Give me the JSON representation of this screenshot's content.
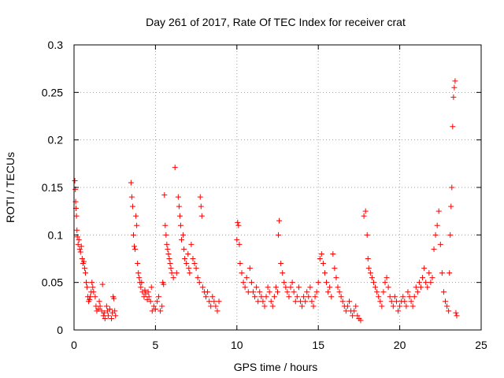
{
  "chart_data": {
    "type": "scatter",
    "title": "Day 261 of 2017, Rate Of TEC Index for receiver crat",
    "xlabel": "GPS time / hours",
    "ylabel": "ROTI / TECUs",
    "xlim": [
      0,
      25
    ],
    "ylim": [
      0,
      0.3
    ],
    "x_ticks": [
      "0",
      "5",
      "10",
      "15",
      "20",
      "25"
    ],
    "y_ticks": [
      "0",
      "0.05",
      "0.1",
      "0.15",
      "0.2",
      "0.25",
      "0.3"
    ],
    "x_tick_values": [
      0,
      5,
      10,
      15,
      20,
      25
    ],
    "y_tick_values": [
      0,
      0.05,
      0.1,
      0.15,
      0.2,
      0.25,
      0.3
    ],
    "grid": true,
    "marker": "plus",
    "series": [
      {
        "color": "#ff0000",
        "points": [
          [
            0.05,
            0.157
          ],
          [
            0.08,
            0.148
          ],
          [
            0.1,
            0.135
          ],
          [
            0.12,
            0.128
          ],
          [
            0.15,
            0.12
          ],
          [
            0.18,
            0.105
          ],
          [
            0.2,
            0.098
          ],
          [
            0.25,
            0.09
          ],
          [
            0.3,
            0.095
          ],
          [
            0.35,
            0.085
          ],
          [
            0.4,
            0.082
          ],
          [
            0.45,
            0.088
          ],
          [
            0.5,
            0.075
          ],
          [
            0.55,
            0.07
          ],
          [
            0.6,
            0.072
          ],
          [
            0.65,
            0.065
          ],
          [
            0.7,
            0.06
          ],
          [
            0.75,
            0.05
          ],
          [
            0.8,
            0.045
          ],
          [
            0.85,
            0.035
          ],
          [
            0.9,
            0.03
          ],
          [
            0.95,
            0.032
          ],
          [
            1.0,
            0.035
          ],
          [
            1.05,
            0.04
          ],
          [
            1.1,
            0.05
          ],
          [
            1.15,
            0.045
          ],
          [
            1.2,
            0.04
          ],
          [
            1.3,
            0.035
          ],
          [
            1.35,
            0.025
          ],
          [
            1.4,
            0.02
          ],
          [
            1.5,
            0.022
          ],
          [
            1.55,
            0.03
          ],
          [
            1.6,
            0.025
          ],
          [
            1.7,
            0.02
          ],
          [
            1.75,
            0.048
          ],
          [
            1.8,
            0.015
          ],
          [
            1.85,
            0.018
          ],
          [
            1.9,
            0.012
          ],
          [
            2.0,
            0.025
          ],
          [
            2.05,
            0.02
          ],
          [
            2.1,
            0.015
          ],
          [
            2.2,
            0.022
          ],
          [
            2.3,
            0.012
          ],
          [
            2.35,
            0.018
          ],
          [
            2.4,
            0.035
          ],
          [
            2.45,
            0.033
          ],
          [
            2.5,
            0.02
          ],
          [
            2.55,
            0.015
          ],
          [
            3.5,
            0.155
          ],
          [
            3.55,
            0.14
          ],
          [
            3.6,
            0.13
          ],
          [
            3.65,
            0.1
          ],
          [
            3.7,
            0.088
          ],
          [
            3.75,
            0.085
          ],
          [
            3.8,
            0.12
          ],
          [
            3.85,
            0.11
          ],
          [
            3.9,
            0.07
          ],
          [
            3.95,
            0.06
          ],
          [
            4.0,
            0.055
          ],
          [
            4.05,
            0.05
          ],
          [
            4.1,
            0.045
          ],
          [
            4.15,
            0.05
          ],
          [
            4.2,
            0.04
          ],
          [
            4.3,
            0.035
          ],
          [
            4.35,
            0.042
          ],
          [
            4.4,
            0.038
          ],
          [
            4.5,
            0.032
          ],
          [
            4.55,
            0.04
          ],
          [
            4.6,
            0.035
          ],
          [
            4.7,
            0.03
          ],
          [
            4.75,
            0.045
          ],
          [
            4.8,
            0.02
          ],
          [
            4.9,
            0.025
          ],
          [
            5.0,
            0.022
          ],
          [
            5.1,
            0.03
          ],
          [
            5.2,
            0.035
          ],
          [
            5.3,
            0.02
          ],
          [
            5.4,
            0.025
          ],
          [
            5.45,
            0.05
          ],
          [
            5.5,
            0.048
          ],
          [
            5.55,
            0.142
          ],
          [
            5.6,
            0.11
          ],
          [
            5.65,
            0.1
          ],
          [
            5.7,
            0.09
          ],
          [
            5.75,
            0.085
          ],
          [
            5.8,
            0.08
          ],
          [
            5.85,
            0.075
          ],
          [
            5.9,
            0.07
          ],
          [
            5.95,
            0.065
          ],
          [
            6.0,
            0.06
          ],
          [
            6.1,
            0.055
          ],
          [
            6.2,
            0.171
          ],
          [
            6.3,
            0.06
          ],
          [
            6.4,
            0.14
          ],
          [
            6.45,
            0.13
          ],
          [
            6.5,
            0.12
          ],
          [
            6.55,
            0.11
          ],
          [
            6.6,
            0.095
          ],
          [
            6.7,
            0.1
          ],
          [
            6.75,
            0.085
          ],
          [
            6.8,
            0.075
          ],
          [
            6.9,
            0.07
          ],
          [
            7.0,
            0.08
          ],
          [
            7.05,
            0.065
          ],
          [
            7.1,
            0.06
          ],
          [
            7.2,
            0.09
          ],
          [
            7.3,
            0.075
          ],
          [
            7.4,
            0.07
          ],
          [
            7.5,
            0.065
          ],
          [
            7.6,
            0.055
          ],
          [
            7.7,
            0.05
          ],
          [
            7.75,
            0.14
          ],
          [
            7.8,
            0.13
          ],
          [
            7.85,
            0.12
          ],
          [
            7.9,
            0.045
          ],
          [
            8.0,
            0.04
          ],
          [
            8.1,
            0.035
          ],
          [
            8.2,
            0.04
          ],
          [
            8.3,
            0.03
          ],
          [
            8.4,
            0.025
          ],
          [
            8.5,
            0.035
          ],
          [
            8.6,
            0.03
          ],
          [
            8.7,
            0.025
          ],
          [
            8.8,
            0.02
          ],
          [
            8.9,
            0.03
          ],
          [
            10.0,
            0.095
          ],
          [
            10.05,
            0.113
          ],
          [
            10.1,
            0.11
          ],
          [
            10.15,
            0.09
          ],
          [
            10.2,
            0.07
          ],
          [
            10.3,
            0.06
          ],
          [
            10.4,
            0.05
          ],
          [
            10.5,
            0.045
          ],
          [
            10.6,
            0.055
          ],
          [
            10.7,
            0.04
          ],
          [
            10.8,
            0.065
          ],
          [
            10.9,
            0.05
          ],
          [
            11.0,
            0.04
          ],
          [
            11.1,
            0.035
          ],
          [
            11.2,
            0.045
          ],
          [
            11.3,
            0.03
          ],
          [
            11.4,
            0.04
          ],
          [
            11.5,
            0.035
          ],
          [
            11.6,
            0.03
          ],
          [
            11.7,
            0.025
          ],
          [
            11.8,
            0.035
          ],
          [
            11.9,
            0.045
          ],
          [
            12.0,
            0.04
          ],
          [
            12.1,
            0.03
          ],
          [
            12.2,
            0.025
          ],
          [
            12.3,
            0.035
          ],
          [
            12.4,
            0.045
          ],
          [
            12.5,
            0.04
          ],
          [
            12.55,
            0.1
          ],
          [
            12.6,
            0.115
          ],
          [
            12.7,
            0.07
          ],
          [
            12.8,
            0.06
          ],
          [
            12.9,
            0.05
          ],
          [
            13.0,
            0.045
          ],
          [
            13.1,
            0.04
          ],
          [
            13.2,
            0.035
          ],
          [
            13.3,
            0.045
          ],
          [
            13.4,
            0.05
          ],
          [
            13.5,
            0.04
          ],
          [
            13.6,
            0.03
          ],
          [
            13.7,
            0.035
          ],
          [
            13.8,
            0.045
          ],
          [
            13.9,
            0.03
          ],
          [
            14.0,
            0.025
          ],
          [
            14.1,
            0.035
          ],
          [
            14.2,
            0.03
          ],
          [
            14.3,
            0.04
          ],
          [
            14.4,
            0.035
          ],
          [
            14.5,
            0.045
          ],
          [
            14.6,
            0.03
          ],
          [
            14.7,
            0.025
          ],
          [
            14.8,
            0.035
          ],
          [
            14.9,
            0.04
          ],
          [
            15.0,
            0.05
          ],
          [
            15.1,
            0.075
          ],
          [
            15.2,
            0.08
          ],
          [
            15.3,
            0.07
          ],
          [
            15.4,
            0.06
          ],
          [
            15.5,
            0.05
          ],
          [
            15.6,
            0.04
          ],
          [
            15.7,
            0.045
          ],
          [
            15.8,
            0.035
          ],
          [
            15.9,
            0.08
          ],
          [
            16.0,
            0.065
          ],
          [
            16.1,
            0.055
          ],
          [
            16.2,
            0.045
          ],
          [
            16.3,
            0.04
          ],
          [
            16.4,
            0.035
          ],
          [
            16.5,
            0.03
          ],
          [
            16.6,
            0.025
          ],
          [
            16.7,
            0.02
          ],
          [
            16.8,
            0.025
          ],
          [
            16.9,
            0.03
          ],
          [
            17.0,
            0.02
          ],
          [
            17.1,
            0.015
          ],
          [
            17.2,
            0.02
          ],
          [
            17.3,
            0.025
          ],
          [
            17.4,
            0.015
          ],
          [
            17.5,
            0.012
          ],
          [
            17.6,
            0.01
          ],
          [
            17.8,
            0.12
          ],
          [
            17.9,
            0.125
          ],
          [
            18.0,
            0.1
          ],
          [
            18.05,
            0.075
          ],
          [
            18.1,
            0.065
          ],
          [
            18.2,
            0.06
          ],
          [
            18.3,
            0.055
          ],
          [
            18.4,
            0.05
          ],
          [
            18.5,
            0.045
          ],
          [
            18.6,
            0.04
          ],
          [
            18.7,
            0.035
          ],
          [
            18.8,
            0.03
          ],
          [
            18.9,
            0.025
          ],
          [
            19.0,
            0.04
          ],
          [
            19.1,
            0.05
          ],
          [
            19.2,
            0.055
          ],
          [
            19.3,
            0.045
          ],
          [
            19.4,
            0.035
          ],
          [
            19.5,
            0.03
          ],
          [
            19.6,
            0.025
          ],
          [
            19.7,
            0.035
          ],
          [
            19.8,
            0.03
          ],
          [
            19.9,
            0.02
          ],
          [
            20.0,
            0.025
          ],
          [
            20.1,
            0.03
          ],
          [
            20.2,
            0.035
          ],
          [
            20.3,
            0.03
          ],
          [
            20.4,
            0.025
          ],
          [
            20.5,
            0.04
          ],
          [
            20.6,
            0.035
          ],
          [
            20.7,
            0.03
          ],
          [
            20.8,
            0.025
          ],
          [
            20.9,
            0.035
          ],
          [
            21.0,
            0.045
          ],
          [
            21.1,
            0.04
          ],
          [
            21.2,
            0.05
          ],
          [
            21.3,
            0.045
          ],
          [
            21.4,
            0.055
          ],
          [
            21.5,
            0.065
          ],
          [
            21.6,
            0.05
          ],
          [
            21.7,
            0.045
          ],
          [
            21.8,
            0.06
          ],
          [
            21.9,
            0.05
          ],
          [
            22.0,
            0.055
          ],
          [
            22.1,
            0.085
          ],
          [
            22.2,
            0.1
          ],
          [
            22.3,
            0.11
          ],
          [
            22.4,
            0.125
          ],
          [
            22.5,
            0.09
          ],
          [
            22.6,
            0.06
          ],
          [
            22.7,
            0.04
          ],
          [
            22.8,
            0.03
          ],
          [
            22.9,
            0.025
          ],
          [
            23.0,
            0.02
          ],
          [
            23.05,
            0.06
          ],
          [
            23.1,
            0.1
          ],
          [
            23.15,
            0.13
          ],
          [
            23.2,
            0.15
          ],
          [
            23.25,
            0.214
          ],
          [
            23.3,
            0.245
          ],
          [
            23.35,
            0.255
          ],
          [
            23.4,
            0.262
          ],
          [
            23.45,
            0.018
          ],
          [
            23.5,
            0.015
          ]
        ]
      }
    ]
  }
}
